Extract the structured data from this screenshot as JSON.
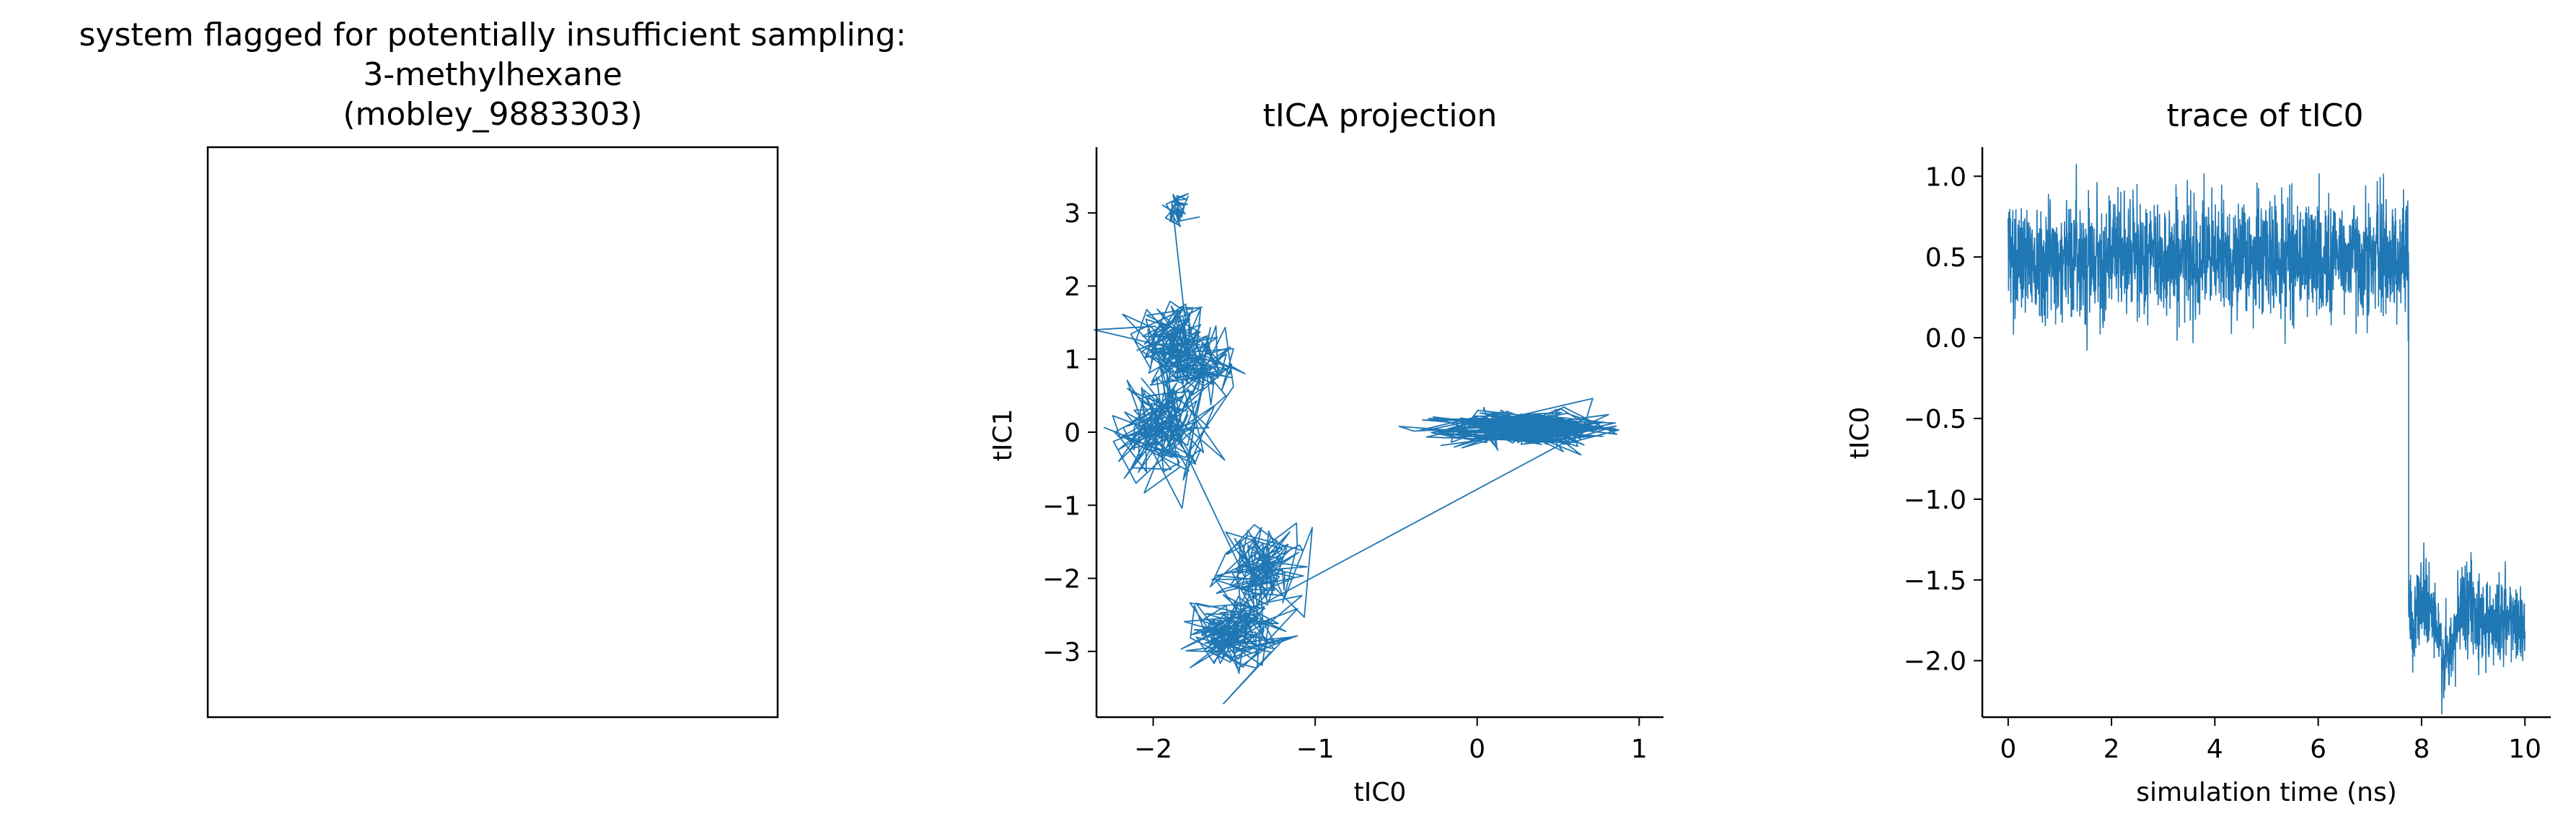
{
  "chart_data": [
    {
      "type": "other",
      "title_lines": [
        "system flagged for potentially insufficient sampling:",
        "3-methylhexane",
        "(mobley_9883303)"
      ],
      "note": "empty panel"
    },
    {
      "type": "line",
      "title": "tICA projection",
      "xlabel": "tIC0",
      "ylabel": "tIC1",
      "xlim": [
        -2.35,
        1.15
      ],
      "ylim": [
        -3.9,
        3.9
      ],
      "xticks": [
        -2,
        -1,
        0,
        1
      ],
      "yticks": [
        -3,
        -2,
        -1,
        0,
        1,
        2,
        3
      ],
      "xtick_labels": [
        "−2",
        "−1",
        "0",
        "1"
      ],
      "ytick_labels": [
        "−3",
        "−2",
        "−1",
        "0",
        "1",
        "2",
        "3"
      ],
      "color": "#1f77b4",
      "clusters": [
        {
          "cx": -1.85,
          "cy": 3.05,
          "sx": 0.05,
          "sy": 0.14,
          "n": 40
        },
        {
          "cx": -1.88,
          "cy": 1.25,
          "sx": 0.12,
          "sy": 0.32,
          "n": 130
        },
        {
          "cx": -1.72,
          "cy": 0.85,
          "sx": 0.12,
          "sy": 0.25,
          "n": 90
        },
        {
          "cx": -1.95,
          "cy": 0.05,
          "sx": 0.14,
          "sy": 0.38,
          "n": 150
        },
        {
          "cx": -1.32,
          "cy": -1.9,
          "sx": 0.14,
          "sy": 0.3,
          "n": 120
        },
        {
          "cx": -1.5,
          "cy": -2.75,
          "sx": 0.13,
          "sy": 0.25,
          "n": 140
        },
        {
          "cx": 0.3,
          "cy": 0.05,
          "sx": 0.25,
          "sy": 0.12,
          "n": 420
        }
      ]
    },
    {
      "type": "line",
      "title": "trace of tIC0",
      "xlabel": "simulation time (ns)",
      "ylabel": "tIC0",
      "xlim": [
        -0.5,
        10.5
      ],
      "ylim": [
        -2.35,
        1.18
      ],
      "xticks": [
        0,
        2,
        4,
        6,
        8,
        10
      ],
      "yticks": [
        -2.0,
        -1.5,
        -1.0,
        -0.5,
        0.0,
        0.5,
        1.0
      ],
      "xtick_labels": [
        "0",
        "2",
        "4",
        "6",
        "8",
        "10"
      ],
      "ytick_labels": [
        "−2.0",
        "−1.5",
        "−1.0",
        "−0.5",
        "0.0",
        "0.5",
        "1.0"
      ],
      "color": "#1f77b4",
      "segments": [
        {
          "t0": 0.0,
          "t1": 7.75,
          "mean": 0.5,
          "amp": 0.18,
          "n": 1800
        },
        {
          "t0": 7.75,
          "t1": 10.0,
          "mean": -1.75,
          "amp": 0.14,
          "n": 600
        }
      ]
    }
  ]
}
